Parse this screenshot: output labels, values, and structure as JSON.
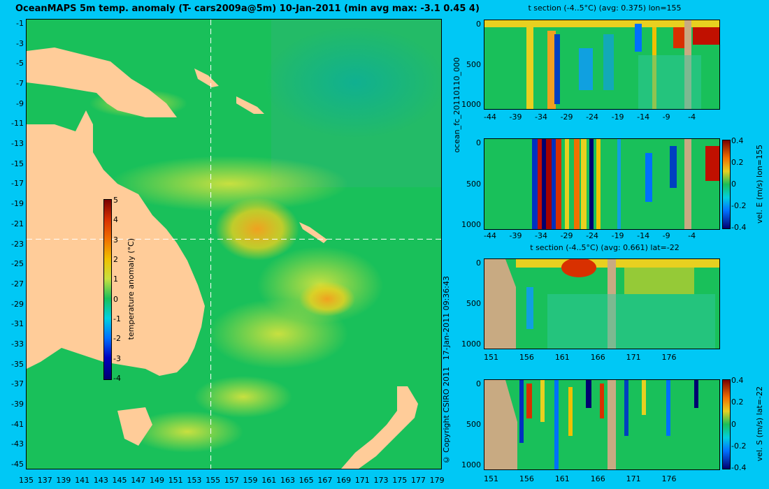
{
  "map": {
    "title": "OceanMAPS 5m temp. anomaly (T- cars2009a@5m) 10-Jan-2011 (min avg max: -3.1 0.45 4)",
    "lat_ticks": [
      "-1",
      "-3",
      "-5",
      "-7",
      "-9",
      "-11",
      "-13",
      "-15",
      "-17",
      "-19",
      "-21",
      "-23",
      "-25",
      "-27",
      "-29",
      "-31",
      "-33",
      "-35",
      "-37",
      "-39",
      "-41",
      "-43",
      "-45"
    ],
    "lon_ticks": [
      "135",
      "137",
      "139",
      "141",
      "143",
      "145",
      "147",
      "149",
      "151",
      "153",
      "155",
      "157",
      "159",
      "161",
      "163",
      "165",
      "167",
      "169",
      "171",
      "173",
      "175",
      "177",
      "179"
    ],
    "section_lon": 155,
    "section_lat": -22,
    "colorbar": {
      "label": "temperature anomaly (°C)",
      "ticks": [
        "5",
        "4",
        "3",
        "2",
        "1",
        "0",
        "-1",
        "-2",
        "-3",
        "-4"
      ],
      "min": -4,
      "max": 5
    }
  },
  "side_labels": {
    "run_id": "ocean_fc_20110110_000",
    "timestamp": "17-Jan-2011 09:36:43",
    "copyright": "© Copyright CSIRO 2011"
  },
  "panels": [
    {
      "title": "t section (-4..5°C) (avg: 0.375) lon=155",
      "y_ticks": [
        "0",
        "500",
        "1000"
      ],
      "x_ticks": [
        "-44",
        "-39",
        "-34",
        "-29",
        "-24",
        "-19",
        "-14",
        "-9",
        "-4"
      ],
      "colorbar": null
    },
    {
      "title": "",
      "y_ticks": [
        "0",
        "500",
        "1000"
      ],
      "x_ticks": [
        "-44",
        "-39",
        "-34",
        "-29",
        "-24",
        "-19",
        "-14",
        "-9",
        "-4"
      ],
      "colorbar": {
        "label": "vel. E (m/s) lon=155",
        "ticks": [
          "0.4",
          "0.2",
          "0",
          "-0.2",
          "-0.4"
        ]
      }
    },
    {
      "title": "t section (-4..5°C) (avg: 0.661) lat=-22",
      "y_ticks": [
        "0",
        "500",
        "1000"
      ],
      "x_ticks": [
        "151",
        "156",
        "161",
        "166",
        "171",
        "176"
      ],
      "colorbar": null
    },
    {
      "title": "",
      "y_ticks": [
        "0",
        "500",
        "1000"
      ],
      "x_ticks": [
        "151",
        "156",
        "161",
        "166",
        "171",
        "176"
      ],
      "colorbar": {
        "label": "vel. S (m/s) lat=-22",
        "ticks": [
          "0.4",
          "0.2",
          "0",
          "-0.2",
          "-0.4"
        ]
      }
    }
  ],
  "colors": {
    "background": "#00c8f5",
    "land": "#ffcc99",
    "section_land": "#c8aa82"
  }
}
